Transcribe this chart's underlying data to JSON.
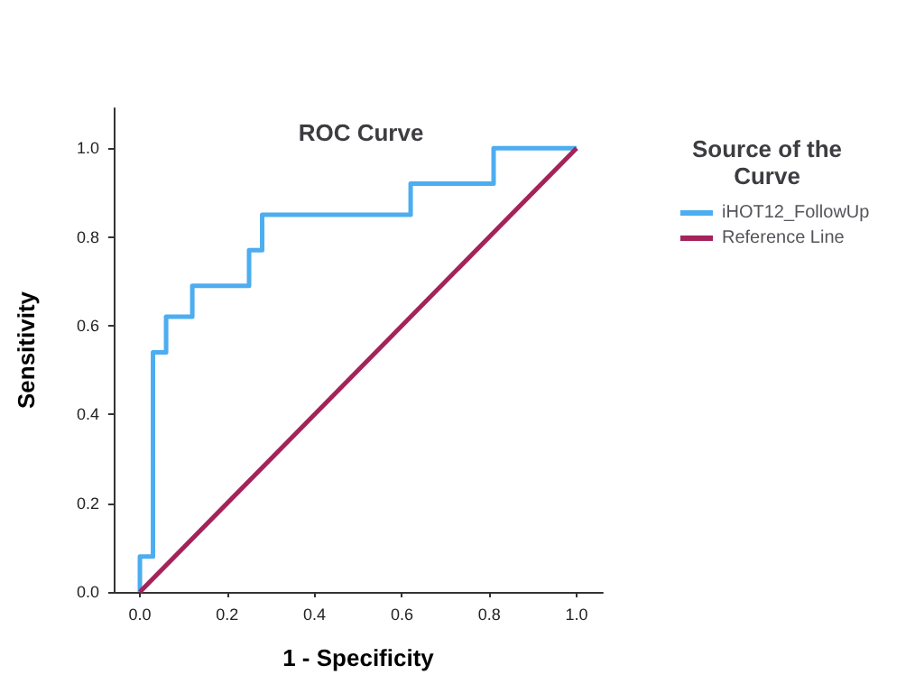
{
  "chart_data": {
    "type": "step",
    "title": "ROC Curve",
    "xlabel": "1 - Specificity",
    "ylabel": "Sensitivity",
    "legend_title": "Source of the Curve",
    "legend": "right",
    "grid": false,
    "xlim": [
      -0.06,
      1.06
    ],
    "ylim": [
      0,
      1.09
    ],
    "xticks": [
      {
        "value": 0,
        "label": "0.0"
      },
      {
        "value": 0.2,
        "label": "0.2"
      },
      {
        "value": 0.4,
        "label": "0.4"
      },
      {
        "value": 0.6,
        "label": "0.6"
      },
      {
        "value": 0.8,
        "label": "0.8"
      },
      {
        "value": 1,
        "label": "1.0"
      }
    ],
    "yticks": [
      {
        "value": 0,
        "label": "0.0"
      },
      {
        "value": 0.2,
        "label": "0.2"
      },
      {
        "value": 0.4,
        "label": "0.4"
      },
      {
        "value": 0.6,
        "label": "0.6"
      },
      {
        "value": 0.8,
        "label": "0.8"
      },
      {
        "value": 1,
        "label": "1.0"
      }
    ],
    "series": [
      {
        "name": "iHOT12_FollowUp",
        "color": "#4dadf0",
        "x": [
          0,
          0,
          0.03,
          0.06,
          0.12,
          0.25,
          0.28,
          0.62,
          0.81,
          1
        ],
        "values": [
          0,
          0.08,
          0.54,
          0.62,
          0.69,
          0.77,
          0.85,
          0.92,
          1,
          1
        ]
      },
      {
        "name": "Reference Line",
        "type": "line",
        "color": "#a3235a",
        "x": [
          0,
          1
        ],
        "values": [
          0,
          1
        ]
      }
    ]
  }
}
